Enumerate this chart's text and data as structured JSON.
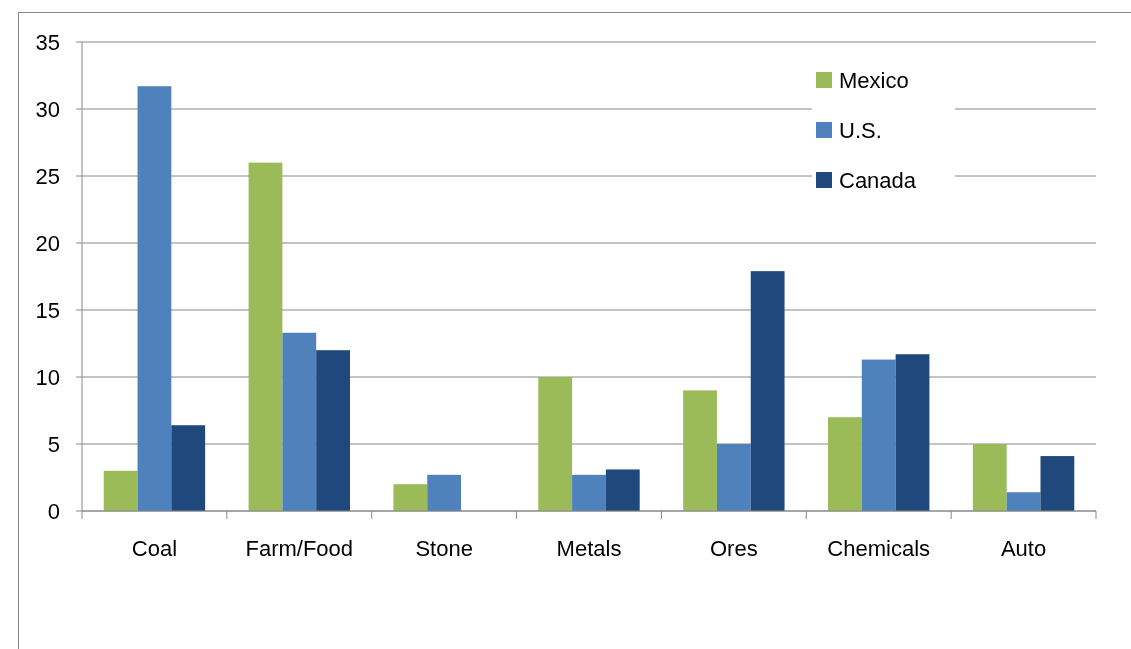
{
  "chart_data": {
    "type": "bar",
    "categories": [
      "Coal",
      "Farm/Food",
      "Stone",
      "Metals",
      "Ores",
      "Chemicals",
      "Auto"
    ],
    "series": [
      {
        "name": "Mexico",
        "color": "#9bbb59",
        "values": [
          3,
          26,
          2,
          10,
          9,
          7,
          5
        ]
      },
      {
        "name": "U.S.",
        "color": "#4f81bd",
        "values": [
          31.7,
          13.3,
          2.7,
          2.7,
          5,
          11.3,
          1.4
        ]
      },
      {
        "name": "Canada",
        "color": "#1f497d",
        "values": [
          6.4,
          12,
          null,
          3.1,
          17.9,
          11.7,
          4.1
        ]
      }
    ],
    "ylim": [
      0,
      35
    ],
    "yticks": [
      0,
      5,
      10,
      15,
      20,
      25,
      30,
      35
    ],
    "grid": "y",
    "legend": "top right"
  }
}
